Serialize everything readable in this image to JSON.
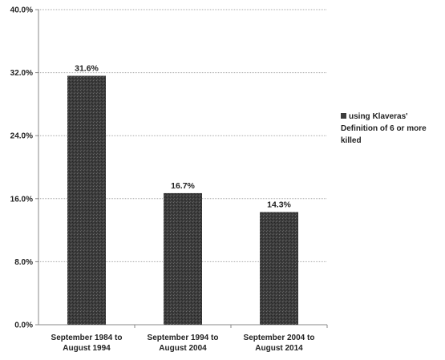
{
  "colors": {
    "bar": "#3c3c3c",
    "grid": "#aaaaaa",
    "axis": "#888888",
    "text": "#222222"
  },
  "chart_data": {
    "type": "bar",
    "categories": [
      [
        "September 1984 to",
        "August 1994"
      ],
      [
        "September 1994 to",
        "August 2004"
      ],
      [
        "September 2004 to",
        "August 2014"
      ]
    ],
    "series": [
      {
        "name": "using Klaveras' Definition of 6 or more killed",
        "values": [
          31.6,
          16.7,
          14.3
        ]
      }
    ],
    "data_labels": [
      "31.6%",
      "16.7%",
      "14.3%"
    ],
    "yticks": [
      "0.0%",
      "8.0%",
      "16.0%",
      "24.0%",
      "32.0%",
      "40.0%"
    ],
    "ylim": [
      0,
      40
    ],
    "grid": true,
    "legend_position": "right",
    "title": "",
    "xlabel": "",
    "ylabel": ""
  }
}
